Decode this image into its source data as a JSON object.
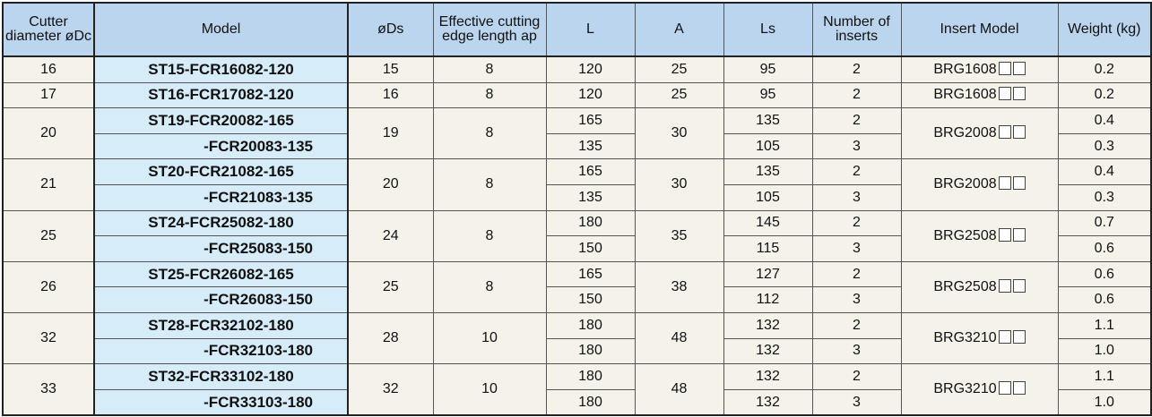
{
  "headers": [
    "Cutter diameter øDc",
    "Model",
    "øDs",
    "Effective cutting edge length ap",
    "L",
    "A",
    "Ls",
    "Number of inserts",
    "Insert Model",
    "Weight (kg)"
  ],
  "groups": [
    {
      "dc": "16",
      "ds": "15",
      "ap": "8",
      "a": "25",
      "insert": "BRG1608",
      "rows": [
        {
          "model": "ST15-FCR16082-120",
          "l": "120",
          "ls": "95",
          "n": "2",
          "w": "0.2"
        }
      ]
    },
    {
      "dc": "17",
      "ds": "16",
      "ap": "8",
      "a": "25",
      "insert": "BRG1608",
      "rows": [
        {
          "model": "ST16-FCR17082-120",
          "l": "120",
          "ls": "95",
          "n": "2",
          "w": "0.2"
        }
      ]
    },
    {
      "dc": "20",
      "ds": "19",
      "ap": "8",
      "a": "30",
      "insert": "BRG2008",
      "rows": [
        {
          "model": "ST19-FCR20082-165",
          "l": "165",
          "ls": "135",
          "n": "2",
          "w": "0.4"
        },
        {
          "model": "-FCR20083-135",
          "l": "135",
          "ls": "105",
          "n": "3",
          "w": "0.3"
        }
      ]
    },
    {
      "dc": "21",
      "ds": "20",
      "ap": "8",
      "a": "30",
      "insert": "BRG2008",
      "rows": [
        {
          "model": "ST20-FCR21082-165",
          "l": "165",
          "ls": "135",
          "n": "2",
          "w": "0.4"
        },
        {
          "model": "-FCR21083-135",
          "l": "135",
          "ls": "105",
          "n": "3",
          "w": "0.3"
        }
      ]
    },
    {
      "dc": "25",
      "ds": "24",
      "ap": "8",
      "a": "35",
      "insert": "BRG2508",
      "rows": [
        {
          "model": "ST24-FCR25082-180",
          "l": "180",
          "ls": "145",
          "n": "2",
          "w": "0.7"
        },
        {
          "model": "-FCR25083-150",
          "l": "150",
          "ls": "115",
          "n": "3",
          "w": "0.6"
        }
      ]
    },
    {
      "dc": "26",
      "ds": "25",
      "ap": "8",
      "a": "38",
      "insert": "BRG2508",
      "rows": [
        {
          "model": "ST25-FCR26082-165",
          "l": "165",
          "ls": "127",
          "n": "2",
          "w": "0.6"
        },
        {
          "model": "-FCR26083-150",
          "l": "150",
          "ls": "112",
          "n": "3",
          "w": "0.6"
        }
      ]
    },
    {
      "dc": "32",
      "ds": "28",
      "ap": "10",
      "a": "48",
      "insert": "BRG3210",
      "rows": [
        {
          "model": "ST28-FCR32102-180",
          "l": "180",
          "ls": "132",
          "n": "2",
          "w": "1.1"
        },
        {
          "model": "-FCR32103-180",
          "l": "180",
          "ls": "132",
          "n": "3",
          "w": "1.0"
        }
      ]
    },
    {
      "dc": "33",
      "ds": "32",
      "ap": "10",
      "a": "48",
      "insert": "BRG3210",
      "rows": [
        {
          "model": "ST32-FCR33102-180",
          "l": "180",
          "ls": "132",
          "n": "2",
          "w": "1.1"
        },
        {
          "model": "-FCR33103-180",
          "l": "180",
          "ls": "132",
          "n": "3",
          "w": "1.0"
        }
      ]
    }
  ]
}
